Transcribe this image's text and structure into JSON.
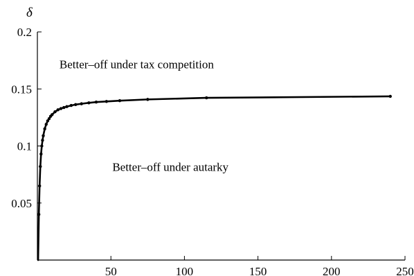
{
  "chart_data": {
    "type": "line",
    "title": "",
    "xlabel": "",
    "ylabel": "δ",
    "xlim": [
      0,
      250
    ],
    "ylim": [
      0,
      0.2
    ],
    "x_ticks": [
      50,
      100,
      150,
      200,
      250
    ],
    "y_ticks": [
      0.05,
      0.1,
      0.15,
      0.2
    ],
    "x_tick_labels": [
      "50",
      "100",
      "150",
      "200",
      "250"
    ],
    "y_tick_labels": [
      "0.05",
      "0.1",
      "0.15",
      "0.2"
    ],
    "grid": false,
    "annotations": [
      {
        "text": "Better–off under tax competition",
        "x": 15,
        "y": 0.168
      },
      {
        "text": "Better–off under autarky",
        "x": 51,
        "y": 0.078
      }
    ],
    "series": [
      {
        "x": [
          1,
          1.5,
          2,
          2.5,
          3,
          3.5,
          4,
          5,
          6,
          7,
          8,
          9,
          10,
          12,
          14,
          16,
          18,
          20,
          23,
          26,
          30,
          35,
          40,
          47,
          56,
          75,
          115,
          240
        ],
        "y": [
          0.04,
          0.065,
          0.082,
          0.093,
          0.1,
          0.105,
          0.109,
          0.115,
          0.119,
          0.122,
          0.124,
          0.126,
          0.1275,
          0.13,
          0.1317,
          0.1328,
          0.1337,
          0.1345,
          0.1355,
          0.1363,
          0.137,
          0.1378,
          0.1385,
          0.139,
          0.1397,
          0.1408,
          0.1422,
          0.1435
        ]
      }
    ]
  }
}
